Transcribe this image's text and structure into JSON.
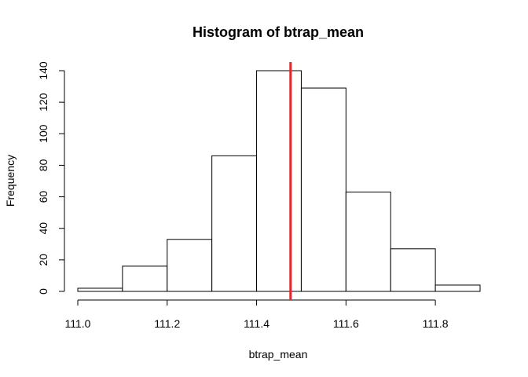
{
  "chart_data": {
    "type": "bar",
    "title": "Histogram of btrap_mean",
    "xlabel": "btrap_mean",
    "ylabel": "Frequency",
    "bins": [
      {
        "start": 111.0,
        "end": 111.1,
        "count": 2
      },
      {
        "start": 111.1,
        "end": 111.2,
        "count": 16
      },
      {
        "start": 111.2,
        "end": 111.3,
        "count": 33
      },
      {
        "start": 111.3,
        "end": 111.4,
        "count": 86
      },
      {
        "start": 111.4,
        "end": 111.5,
        "count": 140
      },
      {
        "start": 111.5,
        "end": 111.6,
        "count": 129
      },
      {
        "start": 111.6,
        "end": 111.7,
        "count": 63
      },
      {
        "start": 111.7,
        "end": 111.8,
        "count": 27
      },
      {
        "start": 111.8,
        "end": 111.9,
        "count": 4
      }
    ],
    "xlim": [
      111.0,
      111.9
    ],
    "ylim": [
      0,
      140
    ],
    "x_ticks": [
      "111.0",
      "111.2",
      "111.4",
      "111.6",
      "111.8"
    ],
    "y_ticks": [
      "0",
      "20",
      "40",
      "60",
      "80",
      "100",
      "120",
      "140"
    ],
    "reference_line": {
      "x": 111.476,
      "color": "#e8262a"
    },
    "bar_fill": "#ffffff",
    "bar_stroke": "#000000",
    "grid": false,
    "legend": "none"
  }
}
